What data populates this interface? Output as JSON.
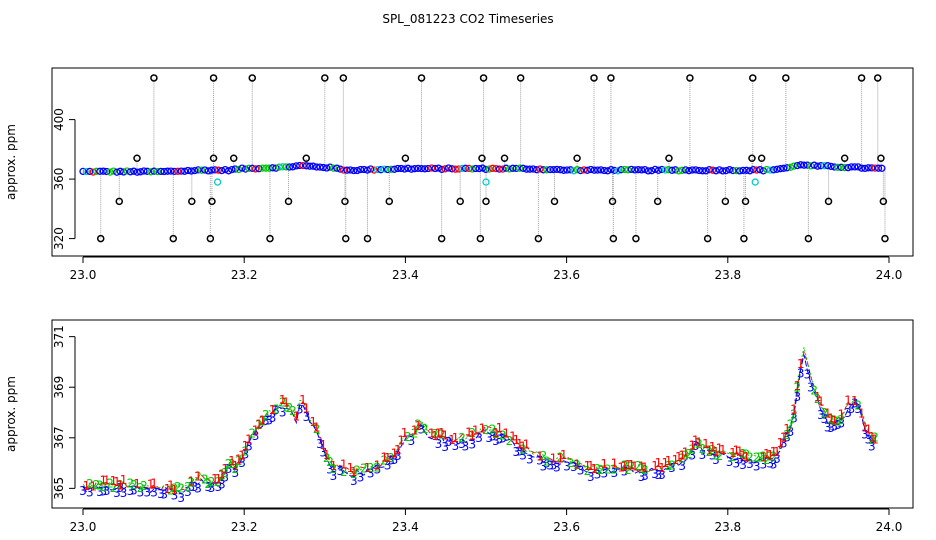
{
  "figure": {
    "title": "SPL_081223  CO2 Timeseries"
  },
  "colors": {
    "red": "#ff0000",
    "green": "#00cc00",
    "blue": "#0000ff",
    "cyan": "#00cccc",
    "gray": "#a0a0a0",
    "black": "#000000"
  },
  "chart_data": [
    {
      "type": "scatter",
      "ylabel": "approx. ppm",
      "xlim": [
        23.0,
        24.0
      ],
      "ylim": [
        313,
        432
      ],
      "xticks": [
        23.0,
        23.2,
        23.4,
        23.6,
        23.8,
        24.0
      ],
      "xtick_labels": [
        "23.0",
        "23.2",
        "23.4",
        "23.6",
        "23.8",
        "24.0"
      ],
      "yticks": [
        320,
        360,
        400
      ],
      "ytick_labels": [
        "320",
        "360",
        "400"
      ],
      "baseline": {
        "x": [
          23.0,
          23.05,
          23.1,
          23.15,
          23.18,
          23.2,
          23.25,
          23.27,
          23.3,
          23.33,
          23.4,
          23.45,
          23.5,
          23.55,
          23.6,
          23.66,
          23.7,
          23.75,
          23.8,
          23.85,
          23.88,
          23.89,
          23.9,
          23.95,
          23.99
        ],
        "y": [
          365,
          365,
          365,
          366,
          366,
          367,
          368,
          369,
          368,
          366,
          367,
          367,
          367,
          367,
          366,
          366,
          366,
          366,
          366,
          366,
          368,
          370,
          369,
          368,
          367
        ]
      },
      "outliers_high": {
        "x": [
          23.088,
          23.162,
          23.21,
          23.3,
          23.323,
          23.42,
          23.497,
          23.543,
          23.634,
          23.655,
          23.753,
          23.831,
          23.872,
          23.966,
          23.986
        ],
        "y": [
          428,
          428,
          428,
          428,
          428,
          428,
          428,
          428,
          428,
          428,
          428,
          428,
          428,
          428,
          428
        ]
      },
      "outliers_low": {
        "x": [
          23.022,
          23.112,
          23.158,
          23.232,
          23.326,
          23.353,
          23.445,
          23.493,
          23.565,
          23.658,
          23.686,
          23.775,
          23.82,
          23.9,
          23.995
        ],
        "y": [
          320,
          320,
          320,
          320,
          320,
          320,
          320,
          320,
          320,
          320,
          320,
          320,
          320,
          320,
          320
        ]
      },
      "outliers_mid_low": {
        "x": [
          23.045,
          23.135,
          23.16,
          23.255,
          23.325,
          23.38,
          23.468,
          23.5,
          23.585,
          23.657,
          23.713,
          23.797,
          23.822,
          23.925,
          23.993
        ],
        "y": [
          345,
          345,
          345,
          345,
          345,
          345,
          345,
          345,
          345,
          345,
          345,
          345,
          345,
          345,
          345
        ]
      },
      "outliers_mid_high": {
        "x": [
          23.067,
          23.162,
          23.187,
          23.277,
          23.4,
          23.495,
          23.523,
          23.613,
          23.727,
          23.83,
          23.842,
          23.945,
          23.99
        ],
        "y": [
          374,
          374,
          374,
          374,
          374,
          374,
          374,
          374,
          374,
          374,
          374,
          374,
          374
        ]
      },
      "cyan_points": {
        "x": [
          23.167,
          23.5,
          23.834
        ],
        "y": [
          358,
          358,
          358
        ]
      }
    },
    {
      "type": "line",
      "ylabel": "approx. ppm",
      "xlim": [
        23.0,
        24.0
      ],
      "ylim": [
        364.5,
        371.5
      ],
      "xticks": [
        23.0,
        23.2,
        23.4,
        23.6,
        23.8,
        24.0
      ],
      "xtick_labels": [
        "23.0",
        "23.2",
        "23.4",
        "23.6",
        "23.8",
        "24.0"
      ],
      "yticks": [
        365,
        367,
        369,
        371
      ],
      "ytick_labels": [
        "365",
        "367",
        "369",
        "371"
      ],
      "series": [
        {
          "label": "1",
          "color": "red"
        },
        {
          "label": "2",
          "color": "green"
        },
        {
          "label": "3",
          "color": "blue"
        }
      ],
      "x": [
        23.0,
        23.02,
        23.04,
        23.06,
        23.08,
        23.1,
        23.12,
        23.14,
        23.15,
        23.16,
        23.17,
        23.18,
        23.19,
        23.2,
        23.21,
        23.22,
        23.23,
        23.24,
        23.25,
        23.26,
        23.265,
        23.27,
        23.28,
        23.29,
        23.3,
        23.31,
        23.32,
        23.33,
        23.35,
        23.37,
        23.39,
        23.4,
        23.41,
        23.42,
        23.43,
        23.44,
        23.46,
        23.48,
        23.5,
        23.52,
        23.54,
        23.56,
        23.58,
        23.6,
        23.62,
        23.64,
        23.66,
        23.67,
        23.7,
        23.72,
        23.74,
        23.75,
        23.76,
        23.77,
        23.78,
        23.8,
        23.82,
        23.84,
        23.86,
        23.87,
        23.88,
        23.89,
        23.895,
        23.9,
        23.91,
        23.92,
        23.93,
        23.94,
        23.95,
        23.96,
        23.97,
        23.98
      ],
      "y": [
        365.0,
        365.1,
        365.1,
        365.1,
        365.0,
        365.0,
        364.9,
        365.3,
        365.4,
        365.1,
        365.3,
        365.9,
        365.8,
        366.4,
        367.1,
        367.5,
        367.9,
        368.2,
        368.3,
        368.0,
        367.6,
        368.6,
        367.7,
        367.3,
        366.4,
        365.8,
        365.8,
        365.6,
        365.7,
        365.9,
        366.4,
        367.1,
        367.1,
        367.6,
        367.1,
        367.0,
        366.9,
        367.0,
        367.3,
        367.1,
        366.7,
        366.3,
        366.0,
        366.1,
        365.8,
        365.7,
        365.8,
        365.8,
        365.7,
        365.8,
        366.0,
        366.3,
        366.8,
        366.6,
        366.4,
        366.3,
        366.2,
        366.1,
        366.3,
        366.9,
        367.5,
        369.8,
        370.5,
        369.6,
        368.6,
        367.9,
        367.5,
        367.7,
        368.3,
        368.5,
        367.4,
        366.9
      ]
    }
  ]
}
